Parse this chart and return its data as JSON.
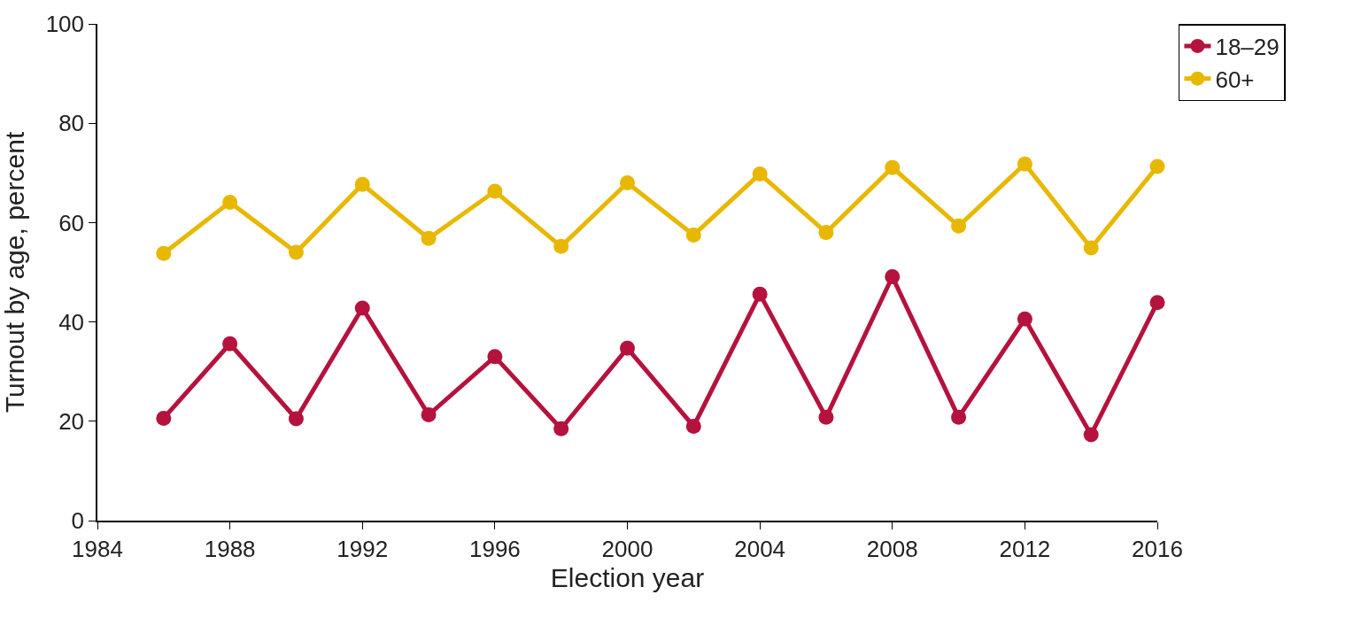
{
  "chart_data": {
    "type": "line",
    "xlabel": "Election year",
    "ylabel": "Turnout by age, percent",
    "x": [
      1986,
      1988,
      1990,
      1992,
      1994,
      1996,
      1998,
      2000,
      2002,
      2004,
      2006,
      2008,
      2010,
      2012,
      2014,
      2016
    ],
    "series": [
      {
        "name": "18–29",
        "color": "#b5123e",
        "values": [
          20.6,
          35.6,
          20.5,
          42.8,
          21.3,
          33,
          18.5,
          34.7,
          19,
          45.6,
          20.8,
          49.1,
          20.8,
          40.6,
          17.3,
          43.9
        ]
      },
      {
        "name": "60+",
        "color": "#e8b800",
        "values": [
          53.8,
          64.1,
          54,
          67.7,
          56.8,
          66.3,
          55.2,
          68,
          57.5,
          69.8,
          58,
          71.1,
          59.3,
          71.8,
          54.9,
          71.3
        ]
      }
    ],
    "xlim": [
      1984,
      2016
    ],
    "xticks": [
      1984,
      1988,
      1992,
      1996,
      2000,
      2004,
      2008,
      2012,
      2016
    ],
    "ylim": [
      0,
      100
    ],
    "yticks": [
      0,
      20,
      40,
      60,
      80,
      100
    ],
    "grid": false,
    "legend": "top right",
    "marker": "circle",
    "line_style": "solid"
  }
}
